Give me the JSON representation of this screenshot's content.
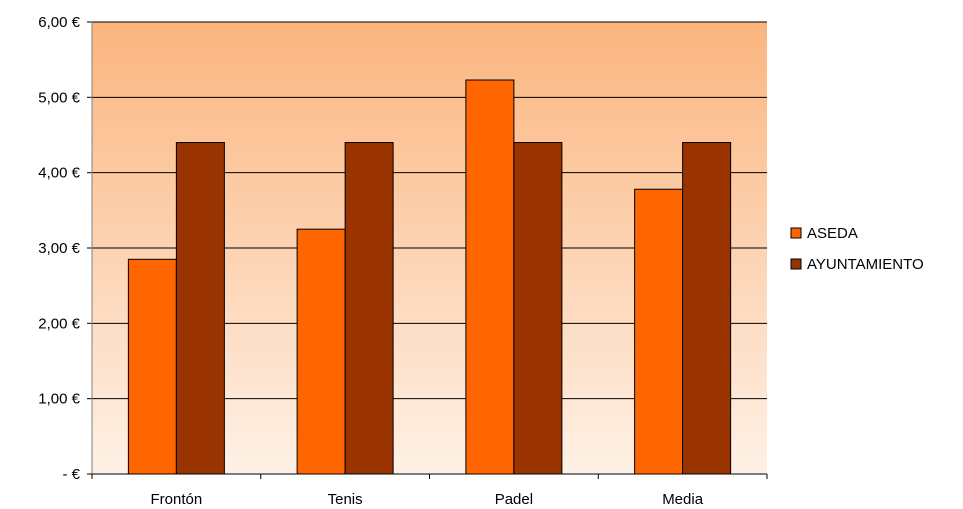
{
  "chart_data": {
    "type": "bar",
    "categories": [
      "Frontón",
      "Tenis",
      "Padel",
      "Media"
    ],
    "series": [
      {
        "name": "ASEDA",
        "values": [
          2.85,
          3.25,
          5.23,
          3.78
        ],
        "color": "#FF6600"
      },
      {
        "name": "AYUNTAMIENTO",
        "values": [
          4.4,
          4.4,
          4.4,
          4.4
        ],
        "color": "#993300"
      }
    ],
    "ylim": [
      0,
      6
    ],
    "yticks": [
      {
        "value": 0,
        "label": "-   €"
      },
      {
        "value": 1,
        "label": "1,00 €"
      },
      {
        "value": 2,
        "label": "2,00 €"
      },
      {
        "value": 3,
        "label": "3,00 €"
      },
      {
        "value": 4,
        "label": "4,00 €"
      },
      {
        "value": 5,
        "label": "5,00 €"
      },
      {
        "value": 6,
        "label": "6,00 €"
      }
    ],
    "grid": true,
    "legend": "right",
    "background_gradient": [
      "#FBB57E",
      "#FEF1E6"
    ]
  }
}
